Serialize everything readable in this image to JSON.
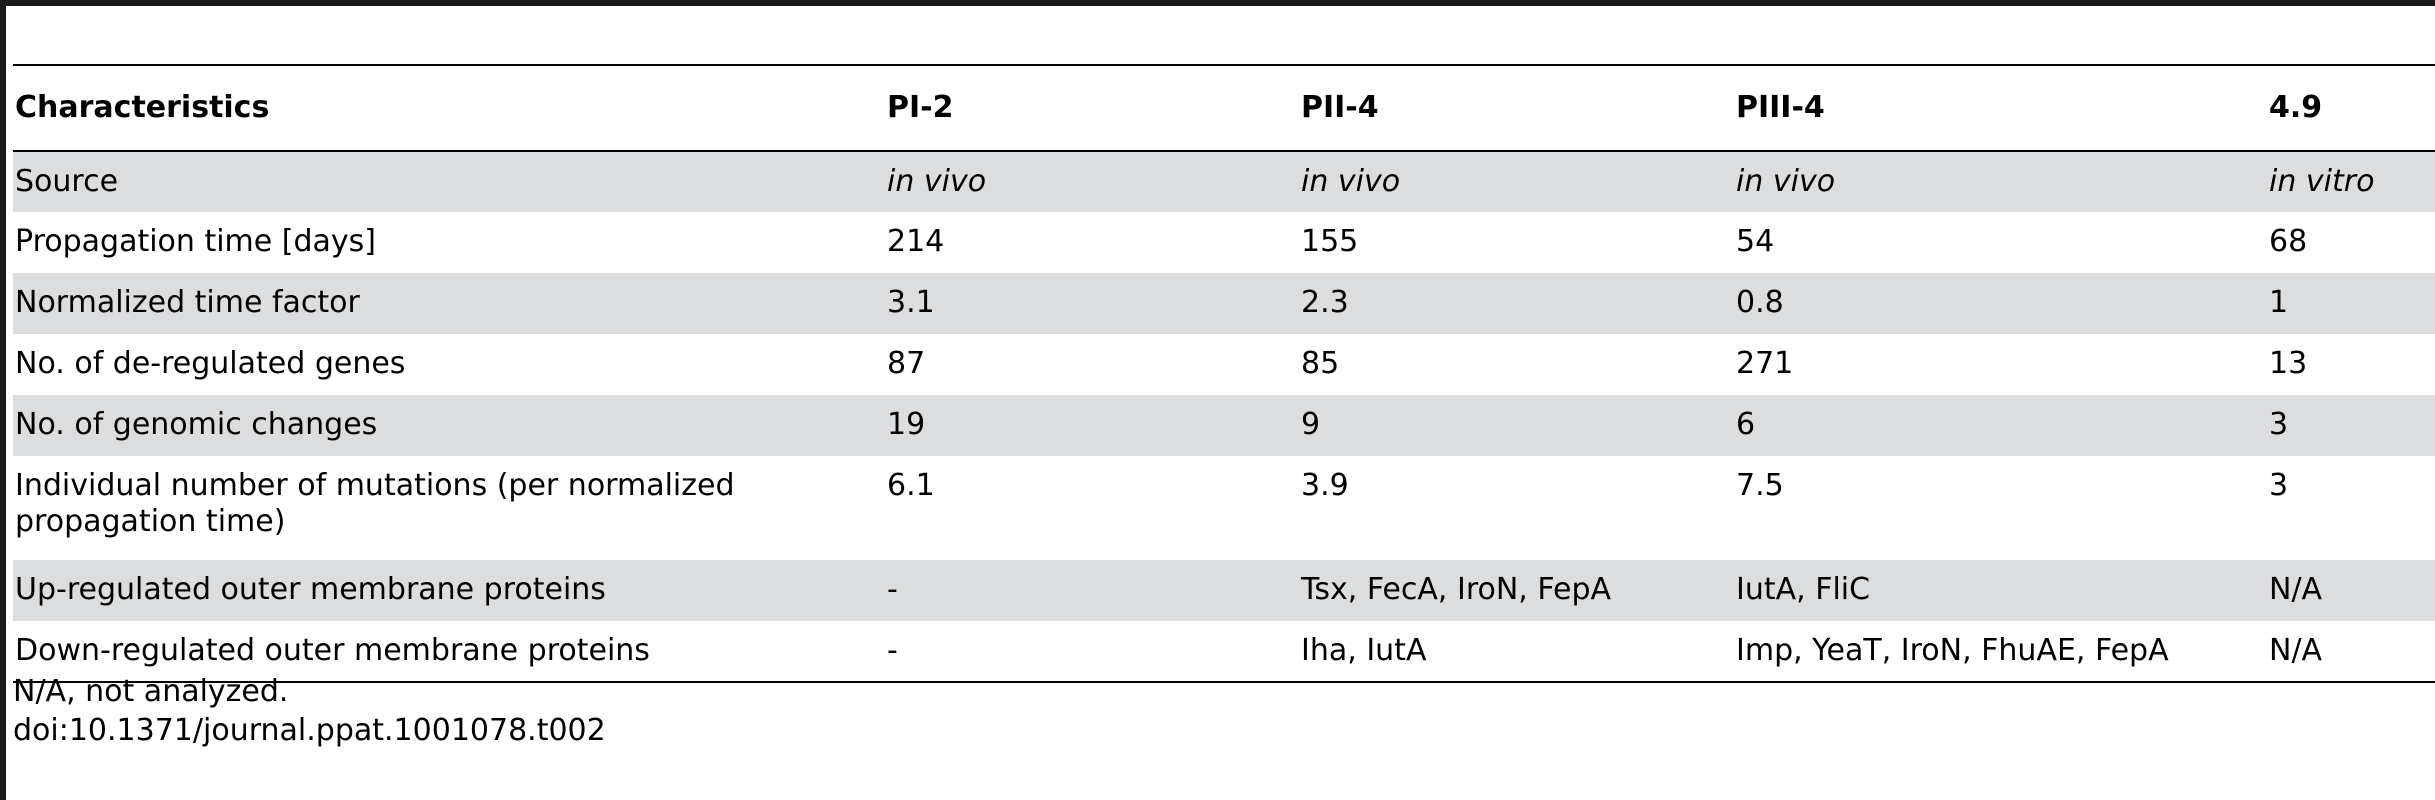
{
  "table": {
    "headers": [
      "Characteristics",
      "PI-2",
      "PII-4",
      "PIII-4",
      "4.9"
    ],
    "rows": [
      {
        "cells": [
          "Source",
          "in vivo",
          "in vivo",
          "in vivo",
          "in vitro"
        ],
        "italic_values": true
      },
      {
        "cells": [
          "Propagation time [days]",
          "214",
          "155",
          "54",
          "68"
        ]
      },
      {
        "cells": [
          "Normalized time factor",
          "3.1",
          "2.3",
          "0.8",
          "1"
        ]
      },
      {
        "cells": [
          "No. of de-regulated genes",
          "87",
          "85",
          "271",
          "13"
        ]
      },
      {
        "cells": [
          "No. of genomic changes",
          "19",
          "9",
          "6",
          "3"
        ]
      },
      {
        "cells": [
          "Individual number of mutations (per normalized propagation time)",
          "6.1",
          "3.9",
          "7.5",
          "3"
        ]
      },
      {
        "cells": [
          "Up-regulated outer membrane proteins",
          "-",
          "Tsx, FecA, IroN, FepA",
          "IutA, FliC",
          "N/A"
        ]
      },
      {
        "cells": [
          "Down-regulated outer membrane proteins",
          "-",
          "Iha, IutA",
          "Imp, YeaT, IroN, FhuAE, FepA",
          "N/A"
        ]
      }
    ],
    "row_shading": [
      true,
      false,
      true,
      false,
      true,
      false,
      true,
      false
    ]
  },
  "footnotes": {
    "note": "N/A, not analyzed.",
    "doi": "doi:10.1371/journal.ppat.1001078.t002"
  }
}
